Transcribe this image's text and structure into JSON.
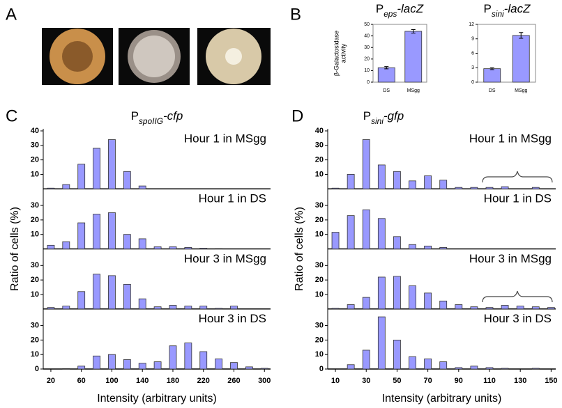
{
  "panel_labels": [
    "A",
    "B",
    "C",
    "D"
  ],
  "chart_data": [
    {
      "type": "bar",
      "title_parts": [
        "P",
        "eps",
        "-lacZ"
      ],
      "ylabel": [
        "β-Galactosidase",
        "activity"
      ],
      "categories": [
        "DS",
        "MSgg"
      ],
      "values": [
        12.5,
        44
      ],
      "errors": [
        1,
        1.5
      ],
      "color": "#9999ff",
      "ylim": [
        0,
        50
      ],
      "yticks": [
        0,
        10,
        20,
        30,
        40,
        50
      ]
    },
    {
      "type": "bar",
      "title_parts": [
        "P",
        "sini",
        "-lacZ"
      ],
      "categories": [
        "DS",
        "MSgg"
      ],
      "values": [
        2.8,
        9.7
      ],
      "errors": [
        0.2,
        0.6
      ],
      "color": "#9999ff",
      "ylim": [
        0,
        12
      ],
      "yticks": [
        0,
        3,
        6,
        9,
        12
      ]
    },
    {
      "type": "bar",
      "title_parts": [
        "P",
        "spoIIG",
        "-cfp"
      ],
      "xlabel": "Intensity (arbitrary units)",
      "ylabel": "Ratio of cells (%)",
      "color": "#9999ff",
      "x": [
        20,
        40,
        60,
        80,
        100,
        120,
        140,
        160,
        180,
        200,
        220,
        240,
        260,
        280,
        300
      ],
      "xlim": [
        10,
        308
      ],
      "xticks": [
        20,
        60,
        100,
        140,
        180,
        220,
        260,
        300
      ],
      "ylim": [
        0,
        40
      ],
      "panels": [
        {
          "label": "Hour 1 in MSgg",
          "yticks": [
            10,
            20,
            30,
            40
          ],
          "values": [
            0.5,
            3,
            17,
            28,
            34,
            12,
            2,
            0,
            0,
            0,
            0,
            0,
            0,
            0,
            0
          ]
        },
        {
          "label": "Hour 1 in DS",
          "yticks": [
            10,
            20,
            30
          ],
          "values": [
            2.5,
            5,
            18,
            24,
            25,
            10,
            7,
            1.5,
            1.5,
            1,
            0.5,
            0.3,
            0,
            0,
            0
          ]
        },
        {
          "label": "Hour 3 in MSgg",
          "yticks": [
            10,
            20,
            30
          ],
          "values": [
            1,
            2,
            12,
            24,
            23,
            17,
            7,
            1.5,
            2.5,
            2,
            2,
            0.5,
            2,
            0,
            0
          ]
        },
        {
          "label": "Hour 3 in DS",
          "yticks": [
            0,
            10,
            20,
            30
          ],
          "values": [
            0,
            0.3,
            2,
            9,
            10,
            6.5,
            4,
            5,
            16,
            18,
            12,
            7,
            4.5,
            1.5,
            0.5
          ]
        }
      ]
    },
    {
      "type": "bar",
      "title_parts": [
        "P",
        "sini",
        "-gfp"
      ],
      "xlabel": "Intensity (arbitrary units)",
      "ylabel": "Ratio of cells (%)",
      "color": "#9999ff",
      "x": [
        10,
        20,
        30,
        40,
        50,
        60,
        70,
        80,
        90,
        100,
        110,
        120,
        130,
        140,
        150
      ],
      "xlim": [
        5,
        153
      ],
      "xticks": [
        10,
        30,
        50,
        70,
        90,
        110,
        130,
        150
      ],
      "ylim": [
        0,
        40
      ],
      "panels": [
        {
          "label": "Hour 1 in MSgg",
          "yticks": [
            10,
            20,
            30,
            40
          ],
          "values": [
            0.5,
            10,
            34,
            16.5,
            12,
            5.5,
            9,
            6,
            1,
            1,
            1,
            1.5,
            0,
            1,
            0
          ]
        },
        {
          "label": "Hour 1 in DS",
          "yticks": [
            10,
            20,
            30
          ],
          "values": [
            11.5,
            23,
            27,
            21,
            8.5,
            3,
            2,
            1,
            0,
            0,
            0,
            0,
            0,
            0,
            0
          ]
        },
        {
          "label": "Hour 3 in MSgg",
          "yticks": [
            10,
            20,
            30
          ],
          "values": [
            0.5,
            3,
            8,
            22,
            22.5,
            16,
            11,
            5.5,
            3,
            1.5,
            1,
            2.5,
            2,
            1.5,
            1
          ]
        },
        {
          "label": "Hour 3 in DS",
          "yticks": [
            0,
            10,
            20,
            30
          ],
          "values": [
            0,
            3,
            13,
            36,
            20,
            8.5,
            7,
            5,
            1,
            2,
            1,
            0.5,
            0,
            0.5,
            0
          ]
        }
      ]
    }
  ]
}
